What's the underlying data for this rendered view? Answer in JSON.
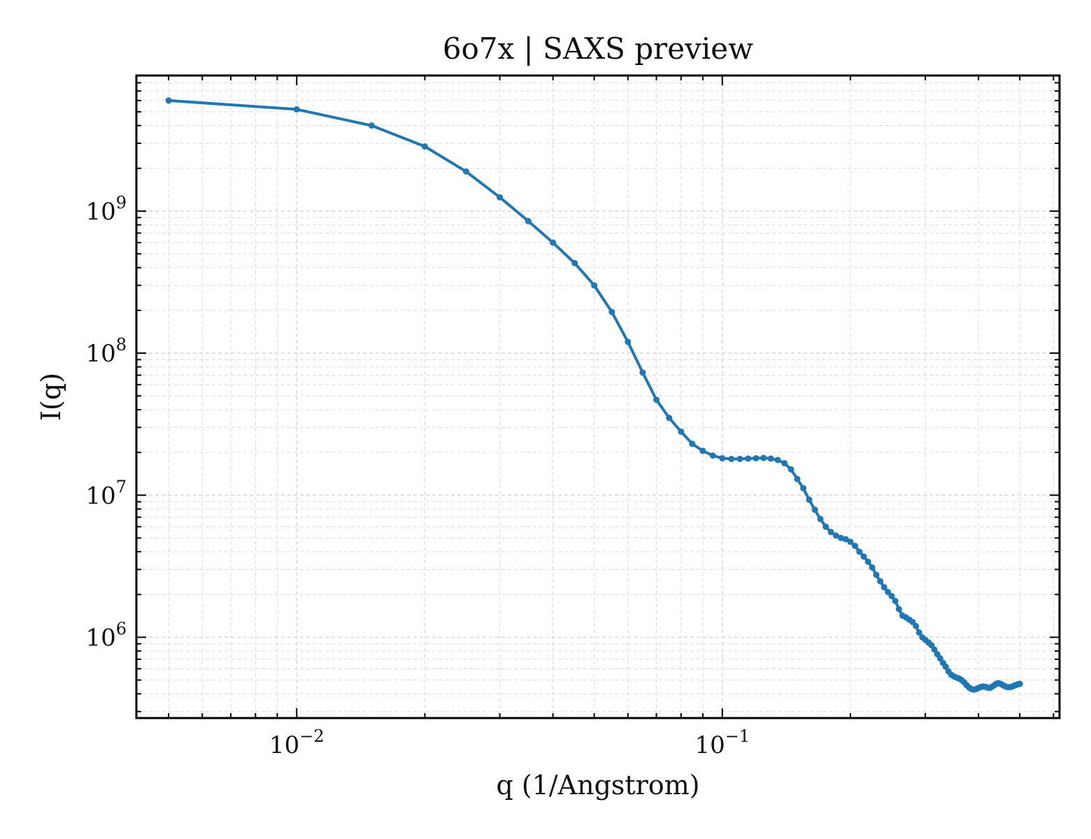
{
  "chart_data": {
    "type": "line",
    "title": "6o7x | SAXS preview",
    "xlabel": "q (1/Angstrom)",
    "ylabel": "I(q)",
    "xscale": "log",
    "yscale": "log",
    "xlim": [
      0.0042,
      0.62
    ],
    "ylim": [
      270000,
      9000000000
    ],
    "grid": true,
    "legend": "none",
    "colors": {
      "line": "#1f77b4",
      "grid": "#d9d9d9",
      "axes": "#000000"
    },
    "x_ticks": [
      {
        "value": 0.01,
        "base": "10",
        "exp": "−2"
      },
      {
        "value": 0.1,
        "base": "10",
        "exp": "−1"
      }
    ],
    "y_ticks": [
      {
        "value": 1000000,
        "base": "10",
        "exp": "6"
      },
      {
        "value": 10000000,
        "base": "10",
        "exp": "7"
      },
      {
        "value": 100000000,
        "base": "10",
        "exp": "8"
      },
      {
        "value": 1000000000,
        "base": "10",
        "exp": "9"
      }
    ],
    "series": [
      {
        "x": [
          0.005,
          0.01,
          0.015,
          0.02,
          0.025,
          0.03,
          0.035,
          0.04,
          0.045,
          0.05,
          0.055,
          0.06,
          0.065,
          0.07,
          0.075,
          0.08,
          0.085,
          0.09,
          0.095,
          0.1,
          0.105,
          0.11,
          0.115,
          0.12,
          0.125,
          0.13,
          0.135,
          0.14,
          0.145,
          0.15,
          0.155,
          0.16,
          0.165,
          0.17,
          0.175,
          0.18,
          0.185,
          0.19,
          0.195,
          0.2,
          0.205,
          0.21,
          0.215,
          0.22,
          0.225,
          0.23,
          0.235,
          0.24,
          0.245,
          0.25,
          0.255,
          0.26,
          0.265,
          0.27,
          0.275,
          0.28,
          0.285,
          0.29,
          0.295,
          0.3,
          0.305,
          0.31,
          0.315,
          0.32,
          0.325,
          0.33,
          0.335,
          0.34,
          0.345,
          0.35,
          0.355,
          0.36,
          0.365,
          0.37,
          0.375,
          0.38,
          0.385,
          0.39,
          0.395,
          0.4,
          0.405,
          0.41,
          0.415,
          0.42,
          0.425,
          0.43,
          0.435,
          0.44,
          0.445,
          0.45,
          0.455,
          0.46,
          0.465,
          0.47,
          0.475,
          0.48,
          0.485,
          0.49,
          0.495,
          0.5
        ],
        "y": [
          6000000000,
          5200000000,
          4000000000,
          2850000000,
          1900000000,
          1250000000,
          850000000,
          600000000,
          430000000,
          300000000,
          195000000,
          120000000,
          73000000,
          47000000,
          35000000,
          28000000,
          23000000,
          20500000,
          19000000,
          18200000,
          18000000,
          18000000,
          18100000,
          18200000,
          18300000,
          18100000,
          17700000,
          16800000,
          15200000,
          13000000,
          11200000,
          9300000,
          7900000,
          6800000,
          6000000,
          5500000,
          5200000,
          5000000,
          4900000,
          4700000,
          4400000,
          4000000,
          3700000,
          3400000,
          3100000,
          2750000,
          2480000,
          2250000,
          2080000,
          1950000,
          1800000,
          1580000,
          1420000,
          1380000,
          1330000,
          1280000,
          1200000,
          1080000,
          1000000,
          960000,
          920000,
          880000,
          820000,
          760000,
          710000,
          660000,
          620000,
          575000,
          545000,
          530000,
          520000,
          512000,
          500000,
          482000,
          460000,
          443000,
          432000,
          428000,
          432000,
          440000,
          447000,
          450000,
          448000,
          442000,
          440000,
          448000,
          458000,
          470000,
          475000,
          471000,
          463000,
          454000,
          448000,
          445000,
          446000,
          450000,
          456000,
          462000,
          467000,
          470000
        ]
      }
    ]
  }
}
